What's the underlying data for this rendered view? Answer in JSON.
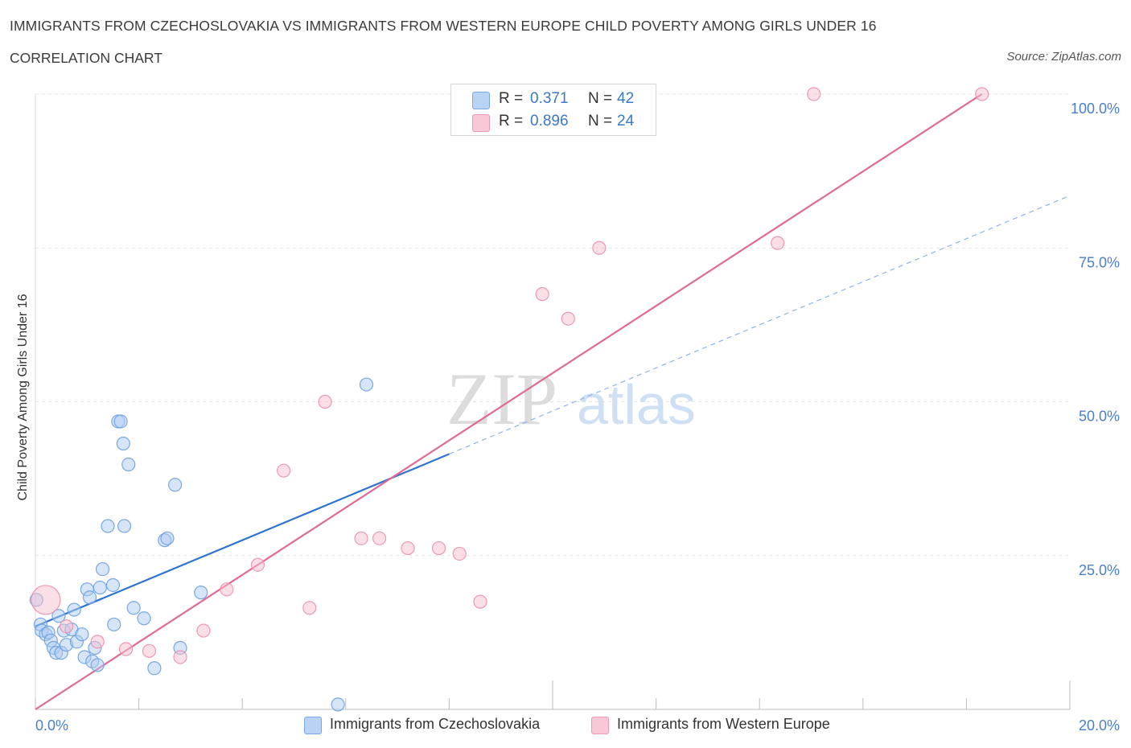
{
  "title": "IMMIGRANTS FROM CZECHOSLOVAKIA VS IMMIGRANTS FROM WESTERN EUROPE CHILD POVERTY AMONG GIRLS UNDER 16",
  "subtitle": "CORRELATION CHART",
  "source": "Source: ZipAtlas.com",
  "watermark": {
    "zip": "ZIP",
    "atlas": "atlas"
  },
  "colors": {
    "blue_fill": "#aecbf2",
    "blue_stroke": "#6a9ee0",
    "blue_line": "#2f74d0",
    "pink_fill": "#f7bfd0",
    "pink_stroke": "#ea8fab",
    "pink_line": "#e06a94",
    "axis_text": "#4a7fcc",
    "grid": "#e3e3e3"
  },
  "legend": {
    "rows": [
      {
        "r_label": "R =",
        "r_value": "0.371",
        "n_label": "N =",
        "n_value": "42"
      },
      {
        "r_label": "R =",
        "r_value": "0.896",
        "n_label": "N =",
        "n_value": "24"
      }
    ]
  },
  "bottom_legend": [
    "Immigrants from Czechoslovakia",
    "Immigrants from Western Europe"
  ],
  "chart_data": {
    "type": "scatter",
    "title": "IMMIGRANTS FROM CZECHOSLOVAKIA VS IMMIGRANTS FROM WESTERN EUROPE CHILD POVERTY AMONG GIRLS UNDER 16",
    "ylabel": "Child Poverty Among Girls Under 16",
    "xlabel": "",
    "x_unit": "%",
    "xlim": [
      0,
      20
    ],
    "ylim": [
      0,
      100
    ],
    "x_tick_labels": [
      {
        "value": 0,
        "label": "0.0%"
      },
      {
        "value": 20,
        "label": "20.0%"
      }
    ],
    "y_tick_labels": [
      {
        "value": 25,
        "label": "25.0%"
      },
      {
        "value": 50,
        "label": "50.0%"
      },
      {
        "value": 75,
        "label": "75.0%"
      },
      {
        "value": 100,
        "label": "100.0%"
      }
    ],
    "grid": true,
    "legend_position": "top-center",
    "series": [
      {
        "name": "Immigrants from Czechoslovakia",
        "color": "#6a9ee0",
        "points": [
          [
            0.02,
            17.8
          ],
          [
            0.1,
            13.8
          ],
          [
            0.12,
            12.8
          ],
          [
            0.2,
            12.2
          ],
          [
            0.25,
            12.5
          ],
          [
            0.3,
            11.2
          ],
          [
            0.35,
            10.0
          ],
          [
            0.4,
            9.2
          ],
          [
            0.45,
            15.2
          ],
          [
            0.5,
            9.2
          ],
          [
            0.55,
            12.8
          ],
          [
            0.6,
            10.5
          ],
          [
            0.7,
            13.0
          ],
          [
            0.75,
            16.2
          ],
          [
            0.8,
            11.0
          ],
          [
            0.9,
            12.2
          ],
          [
            0.95,
            8.5
          ],
          [
            1.0,
            19.5
          ],
          [
            1.05,
            18.2
          ],
          [
            1.1,
            7.8
          ],
          [
            1.15,
            10.0
          ],
          [
            1.2,
            7.2
          ],
          [
            1.25,
            19.8
          ],
          [
            1.3,
            22.8
          ],
          [
            1.4,
            29.8
          ],
          [
            1.5,
            20.2
          ],
          [
            1.52,
            13.8
          ],
          [
            1.6,
            46.8
          ],
          [
            1.65,
            46.8
          ],
          [
            1.7,
            43.2
          ],
          [
            1.72,
            29.8
          ],
          [
            1.8,
            39.8
          ],
          [
            1.9,
            16.5
          ],
          [
            2.1,
            14.8
          ],
          [
            2.3,
            6.7
          ],
          [
            2.5,
            27.5
          ],
          [
            2.55,
            27.8
          ],
          [
            2.7,
            36.5
          ],
          [
            2.8,
            10.0
          ],
          [
            3.2,
            19.0
          ],
          [
            6.4,
            52.8
          ],
          [
            5.85,
            0.8
          ]
        ]
      },
      {
        "name": "Immigrants from Western Europe",
        "color": "#ea8fab",
        "points": [
          [
            0.2,
            17.8
          ],
          [
            0.6,
            13.5
          ],
          [
            1.2,
            11.0
          ],
          [
            1.75,
            9.8
          ],
          [
            2.2,
            9.5
          ],
          [
            2.8,
            8.5
          ],
          [
            3.25,
            12.8
          ],
          [
            3.7,
            19.5
          ],
          [
            4.3,
            23.5
          ],
          [
            4.8,
            38.8
          ],
          [
            5.3,
            16.5
          ],
          [
            5.6,
            50.0
          ],
          [
            6.3,
            27.8
          ],
          [
            6.65,
            27.8
          ],
          [
            7.2,
            26.2
          ],
          [
            7.8,
            26.2
          ],
          [
            8.2,
            25.3
          ],
          [
            8.6,
            17.5
          ],
          [
            9.8,
            67.5
          ],
          [
            10.3,
            63.5
          ],
          [
            10.9,
            75.0
          ],
          [
            14.35,
            75.8
          ],
          [
            15.05,
            100.0
          ],
          [
            18.3,
            100.0
          ]
        ]
      }
    ],
    "trend_lines": [
      {
        "series": "Immigrants from Czechoslovakia",
        "x_solid": [
          0,
          8.0
        ],
        "x_dashed": [
          8.0,
          20.0
        ],
        "y_at_x0": 13.5,
        "slope": 3.5
      },
      {
        "series": "Immigrants from Western Europe",
        "x": [
          0,
          18.3
        ],
        "y_at_x0": 0.0,
        "slope": 5.465
      }
    ]
  }
}
